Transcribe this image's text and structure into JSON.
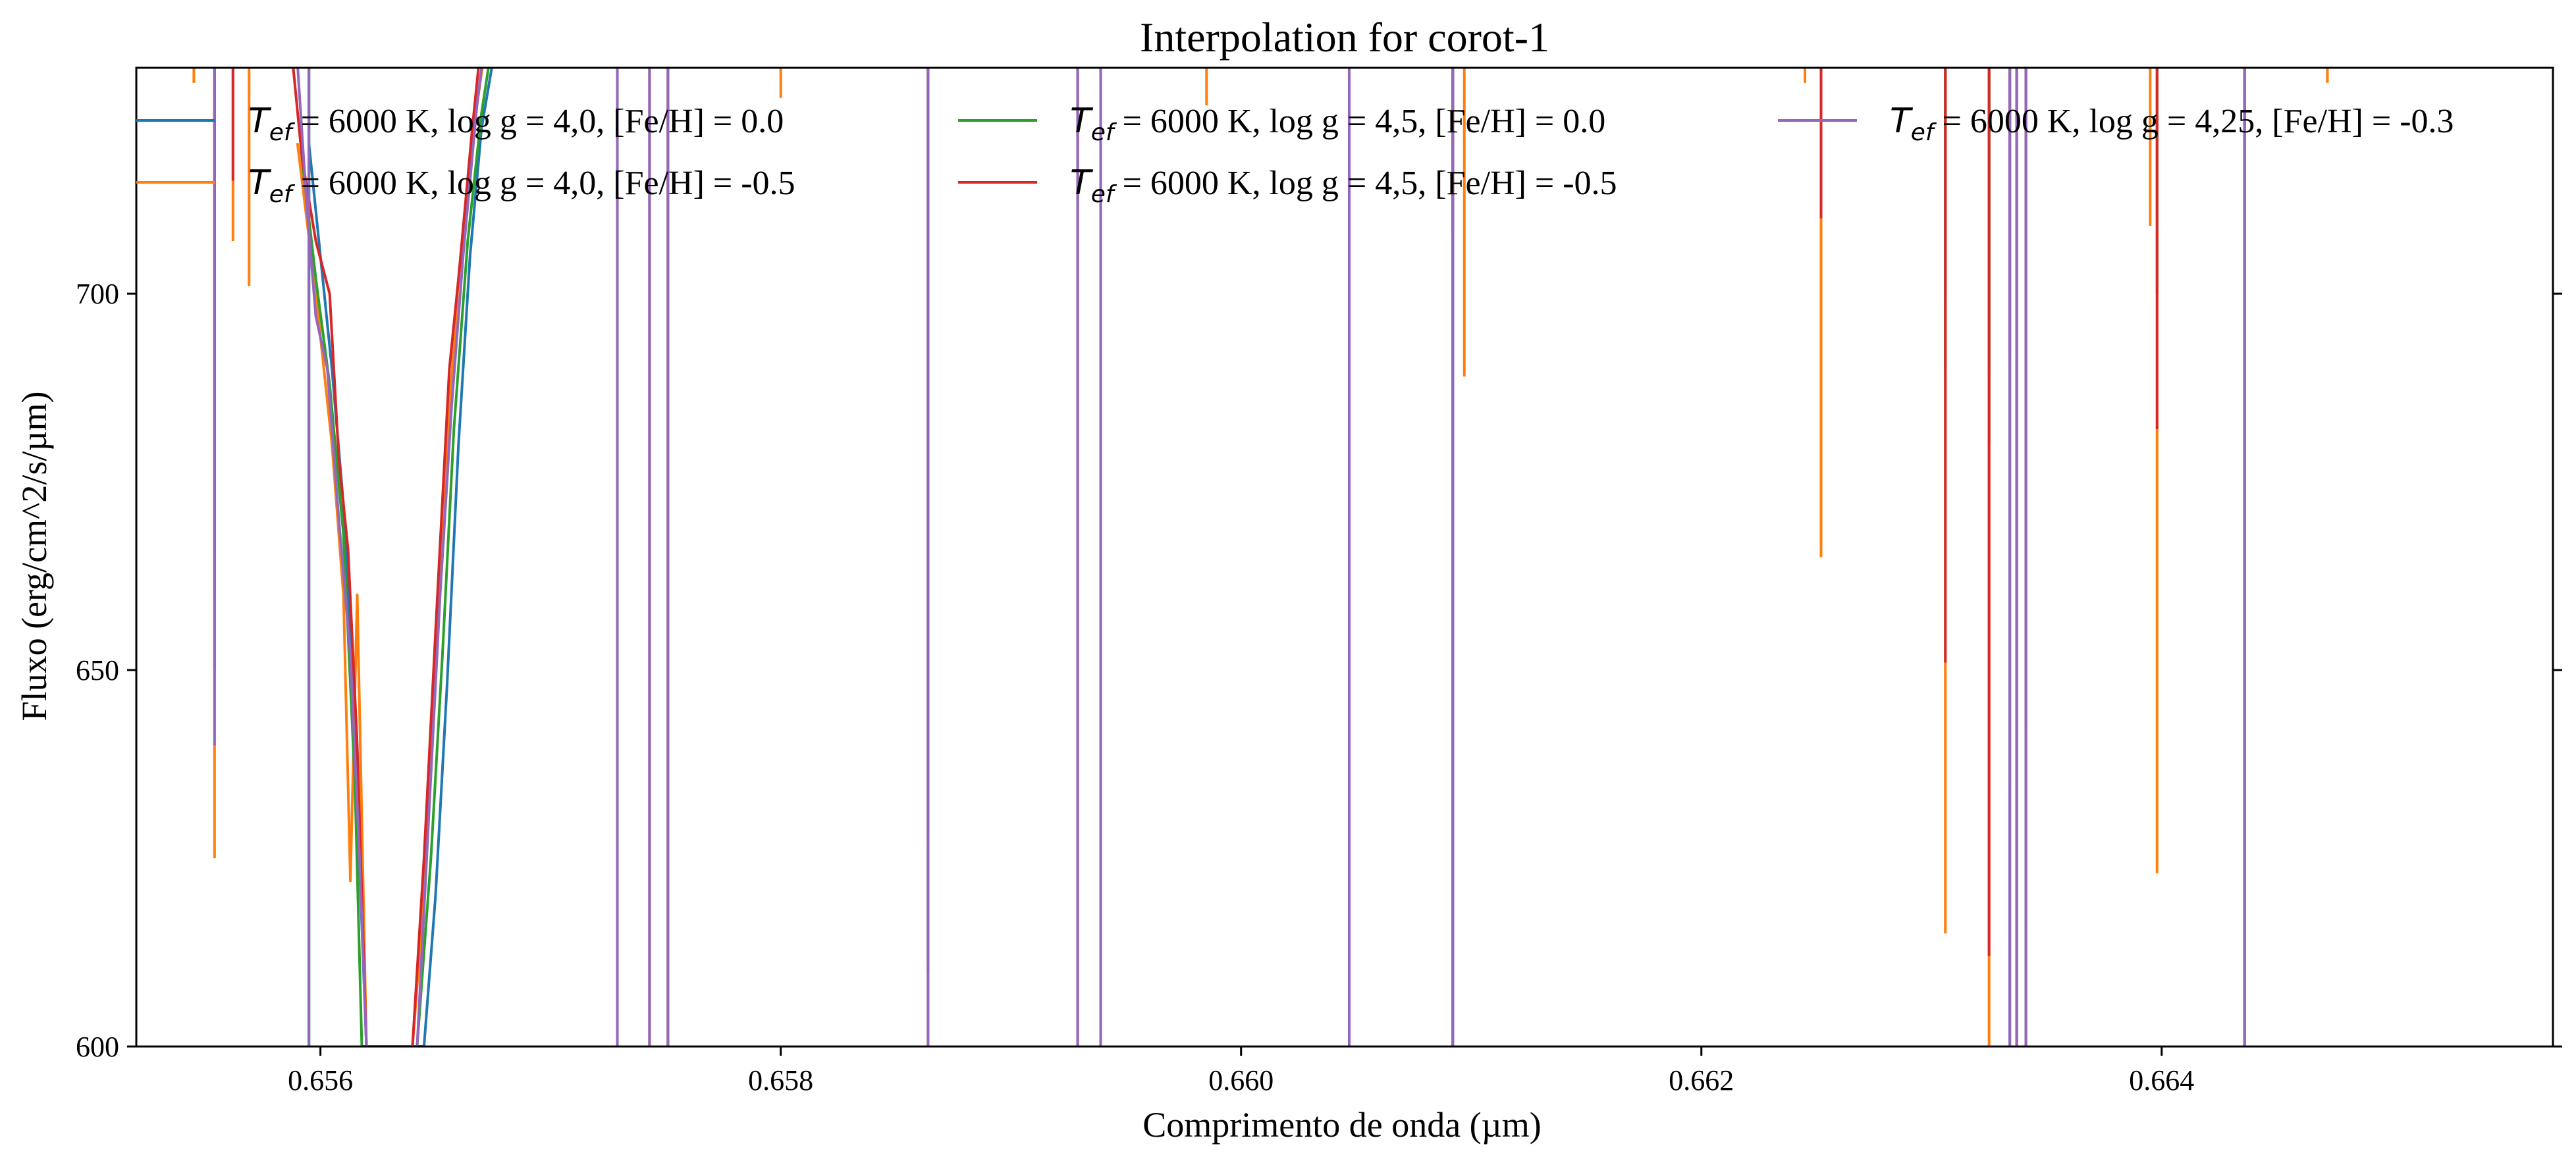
{
  "chart_data": {
    "type": "line",
    "title": "Interpolation for corot-1",
    "xlabel": "Comprimento de onda (µm)",
    "ylabel": "Fluxo (erg/cm^2/s/µm)",
    "xlim": [
      0.6552,
      0.6657
    ],
    "ylim": [
      600,
      730
    ],
    "xticks": [
      0.656,
      0.658,
      0.66,
      0.662,
      0.664
    ],
    "xtick_labels": [
      "0.656",
      "0.658",
      "0.660",
      "0.662",
      "0.664"
    ],
    "yticks": [
      600,
      650,
      700
    ],
    "ytick_labels": [
      "600",
      "650",
      "700"
    ],
    "legend_position": "top, 3 columns",
    "grid": false,
    "baseline_flux": 740,
    "series": [
      {
        "name": "Tef = 6000 K, log g = 4,0, [Fe/H] = 0.0",
        "legend_math": "T",
        "legend_sub": "ef",
        "legend_rest": " = 6000 K, log g = 4,0, [Fe/H] = 0.0",
        "color": "#1f77b4",
        "core": [
          [
            0.65595,
            720
          ],
          [
            0.656,
            705
          ],
          [
            0.65605,
            690
          ],
          [
            0.6561,
            672
          ],
          [
            0.65615,
            640
          ],
          [
            0.6562,
            600
          ],
          [
            0.65645,
            600
          ],
          [
            0.6565,
            620
          ],
          [
            0.65655,
            648
          ],
          [
            0.6566,
            680
          ],
          [
            0.65665,
            705
          ],
          [
            0.6567,
            722
          ],
          [
            0.6568,
            740
          ]
        ],
        "lines": [
          [
            0.65554,
            650
          ],
          [
            0.65595,
            600
          ],
          [
            0.65729,
            590
          ],
          [
            0.65743,
            590
          ],
          [
            0.65751,
            590
          ],
          [
            0.65864,
            610
          ],
          [
            0.65929,
            590
          ],
          [
            0.65939,
            590
          ],
          [
            0.66047,
            600
          ],
          [
            0.66092,
            600
          ],
          [
            0.66306,
            700
          ],
          [
            0.66325,
            690
          ],
          [
            0.66334,
            600
          ],
          [
            0.66337,
            600
          ],
          [
            0.66341,
            600
          ],
          [
            0.66398,
            710
          ],
          [
            0.66436,
            590
          ]
        ]
      },
      {
        "name": "Tef = 6000 K, log g = 4,0, [Fe/H] = -0.5",
        "legend_math": "T",
        "legend_sub": "ef",
        "legend_rest": " = 6000 K, log g = 4,0, [Fe/H] = -0.5",
        "color": "#ff7f0e",
        "core": [
          [
            0.6559,
            720
          ],
          [
            0.65598,
            700
          ],
          [
            0.65605,
            680
          ],
          [
            0.6561,
            660
          ],
          [
            0.65613,
            622
          ],
          [
            0.65616,
            660
          ],
          [
            0.6562,
            600
          ],
          [
            0.6564,
            600
          ],
          [
            0.65645,
            620
          ],
          [
            0.6565,
            650
          ],
          [
            0.65655,
            680
          ],
          [
            0.6566,
            702
          ],
          [
            0.65668,
            725
          ],
          [
            0.65675,
            740
          ]
        ],
        "lines": [
          [
            0.65545,
            728
          ],
          [
            0.65554,
            625
          ],
          [
            0.65562,
            707
          ],
          [
            0.65569,
            701
          ],
          [
            0.65729,
            590
          ],
          [
            0.65743,
            590
          ],
          [
            0.65751,
            590
          ],
          [
            0.658,
            726
          ],
          [
            0.65864,
            600
          ],
          [
            0.65929,
            590
          ],
          [
            0.65939,
            590
          ],
          [
            0.65985,
            725
          ],
          [
            0.66047,
            600
          ],
          [
            0.66092,
            600
          ],
          [
            0.66097,
            689
          ],
          [
            0.66245,
            728
          ],
          [
            0.66252,
            665
          ],
          [
            0.66306,
            615
          ],
          [
            0.66325,
            600
          ],
          [
            0.66334,
            635
          ],
          [
            0.66337,
            600
          ],
          [
            0.66341,
            617
          ],
          [
            0.66395,
            709
          ],
          [
            0.66398,
            623
          ],
          [
            0.66436,
            590
          ],
          [
            0.66472,
            728
          ]
        ]
      },
      {
        "name": "Tef = 6000 K, log g = 4,5, [Fe/H] = 0.0",
        "legend_math": "T",
        "legend_sub": "ef",
        "legend_rest": " = 6000 K, log g = 4,5, [Fe/H] = 0.0",
        "color": "#2ca02c",
        "core": [
          [
            0.65592,
            718
          ],
          [
            0.65598,
            702
          ],
          [
            0.65604,
            688
          ],
          [
            0.6561,
            668
          ],
          [
            0.65615,
            635
          ],
          [
            0.65618,
            600
          ],
          [
            0.65642,
            600
          ],
          [
            0.65648,
            625
          ],
          [
            0.65653,
            652
          ],
          [
            0.65658,
            682
          ],
          [
            0.65664,
            707
          ],
          [
            0.6567,
            724
          ],
          [
            0.65678,
            740
          ]
        ],
        "lines": [
          [
            0.65554,
            660
          ],
          [
            0.65595,
            600
          ],
          [
            0.65729,
            590
          ],
          [
            0.65743,
            590
          ],
          [
            0.65751,
            590
          ],
          [
            0.65864,
            610
          ],
          [
            0.65929,
            590
          ],
          [
            0.65939,
            590
          ],
          [
            0.66047,
            600
          ],
          [
            0.66092,
            600
          ],
          [
            0.66306,
            690
          ],
          [
            0.66325,
            680
          ],
          [
            0.66334,
            600
          ],
          [
            0.66337,
            600
          ],
          [
            0.66341,
            600
          ],
          [
            0.66398,
            700
          ],
          [
            0.66436,
            590
          ]
        ]
      },
      {
        "name": "Tef = 6000 K, log g = 4,5, [Fe/H] = -0.5",
        "legend_math": "T",
        "legend_sub": "ef",
        "legend_rest": " = 6000 K, log g = 4,5, [Fe/H] = -0.5",
        "color": "#d62728",
        "core": [
          [
            0.65585,
            740
          ],
          [
            0.65592,
            718
          ],
          [
            0.65598,
            707
          ],
          [
            0.65604,
            700
          ],
          [
            0.65608,
            678
          ],
          [
            0.65612,
            666
          ],
          [
            0.65616,
            640
          ],
          [
            0.6562,
            600
          ],
          [
            0.6564,
            600
          ],
          [
            0.65645,
            625
          ],
          [
            0.6565,
            655
          ],
          [
            0.65656,
            690
          ],
          [
            0.6566,
            702
          ],
          [
            0.65666,
            722
          ],
          [
            0.65672,
            740
          ]
        ],
        "lines": [
          [
            0.65554,
            666
          ],
          [
            0.65562,
            715
          ],
          [
            0.65729,
            628
          ],
          [
            0.65743,
            600
          ],
          [
            0.65751,
            590
          ],
          [
            0.65864,
            628
          ],
          [
            0.65929,
            590
          ],
          [
            0.65939,
            590
          ],
          [
            0.66047,
            607
          ],
          [
            0.66092,
            708
          ],
          [
            0.66252,
            710
          ],
          [
            0.66306,
            651
          ],
          [
            0.66325,
            612
          ],
          [
            0.66334,
            692
          ],
          [
            0.66337,
            600
          ],
          [
            0.66341,
            642
          ],
          [
            0.66398,
            682
          ],
          [
            0.66436,
            590
          ]
        ]
      },
      {
        "name": "Tef = 6000 K, log g = 4,25, [Fe/H] = -0.3",
        "legend_math": "T",
        "legend_sub": "ef",
        "legend_rest": " = 6000 K, log g = 4,25, [Fe/H] = -0.3",
        "color": "#9467bd",
        "core": [
          [
            0.65588,
            740
          ],
          [
            0.65594,
            712
          ],
          [
            0.65598,
            697
          ],
          [
            0.65603,
            690
          ],
          [
            0.65608,
            670
          ],
          [
            0.65613,
            652
          ],
          [
            0.65617,
            625
          ],
          [
            0.6562,
            600
          ],
          [
            0.65642,
            600
          ],
          [
            0.65647,
            630
          ],
          [
            0.65652,
            660
          ],
          [
            0.65657,
            685
          ],
          [
            0.65662,
            705
          ],
          [
            0.65668,
            725
          ],
          [
            0.65674,
            740
          ]
        ],
        "lines": [
          [
            0.65554,
            640
          ],
          [
            0.65595,
            600
          ],
          [
            0.65729,
            590
          ],
          [
            0.65743,
            590
          ],
          [
            0.65751,
            590
          ],
          [
            0.65864,
            590
          ],
          [
            0.65929,
            590
          ],
          [
            0.65939,
            590
          ],
          [
            0.66047,
            590
          ],
          [
            0.66092,
            590
          ],
          [
            0.66334,
            590
          ],
          [
            0.66337,
            590
          ],
          [
            0.66341,
            590
          ],
          [
            0.66436,
            590
          ]
        ]
      }
    ]
  }
}
